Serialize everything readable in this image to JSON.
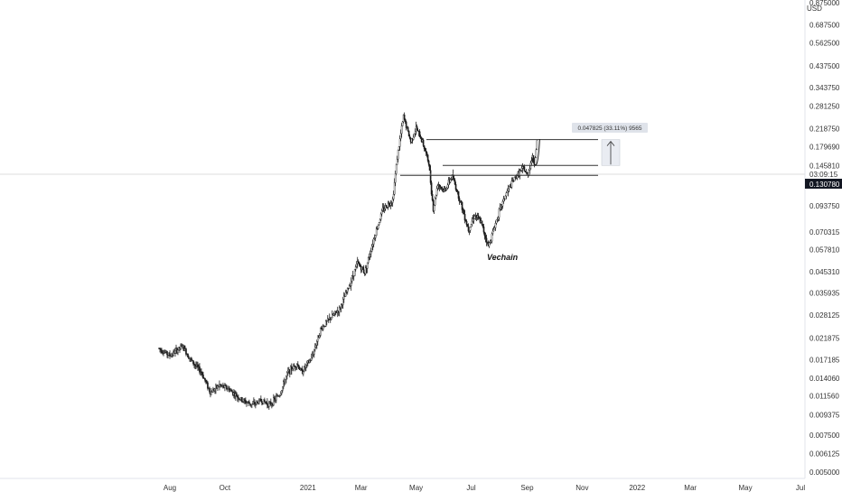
{
  "chart_data": {
    "type": "candlestick",
    "y_scale": "log",
    "y_unit": "USD",
    "y_ticks": [
      "0.875000",
      "0.687500",
      "0.562500",
      "0.437500",
      "0.343750",
      "0.281250",
      "0.218750",
      "0.179690",
      "0.145810",
      "0.130780",
      "0.093750",
      "0.070315",
      "0.057810",
      "0.045310",
      "0.035935",
      "0.028125",
      "0.021875",
      "0.017185",
      "0.014060",
      "0.011560",
      "0.009375",
      "0.007500",
      "0.006125",
      "0.005000"
    ],
    "x_ticks": [
      "Aug",
      "Oct",
      "2021",
      "Mar",
      "May",
      "Jul",
      "Sep",
      "Nov",
      "2022",
      "Mar",
      "May",
      "Jul"
    ],
    "current_price": "0.130780",
    "countdown": "03:09:15",
    "annotation": "Vechain",
    "measure_label": "0.047825 (33.11%) 9565",
    "levels": [
      0.194,
      0.146,
      0.131
    ],
    "price_path": [
      [
        "2020-07-20",
        0.0195
      ],
      [
        "2020-08-01",
        0.018
      ],
      [
        "2020-08-15",
        0.02
      ],
      [
        "2020-08-25",
        0.017
      ],
      [
        "2020-09-05",
        0.015
      ],
      [
        "2020-09-15",
        0.012
      ],
      [
        "2020-09-25",
        0.013
      ],
      [
        "2020-10-05",
        0.0125
      ],
      [
        "2020-10-20",
        0.011
      ],
      [
        "2020-11-01",
        0.0105
      ],
      [
        "2020-11-10",
        0.011
      ],
      [
        "2020-11-20",
        0.0105
      ],
      [
        "2020-12-01",
        0.0118
      ],
      [
        "2020-12-10",
        0.015
      ],
      [
        "2020-12-20",
        0.0165
      ],
      [
        "2020-12-25",
        0.015
      ],
      [
        "2021-01-05",
        0.0175
      ],
      [
        "2021-01-15",
        0.024
      ],
      [
        "2021-01-25",
        0.027
      ],
      [
        "2021-02-05",
        0.03
      ],
      [
        "2021-02-15",
        0.038
      ],
      [
        "2021-02-25",
        0.05
      ],
      [
        "2021-03-05",
        0.045
      ],
      [
        "2021-03-15",
        0.065
      ],
      [
        "2021-03-25",
        0.09
      ],
      [
        "2021-04-05",
        0.1
      ],
      [
        "2021-04-10",
        0.16
      ],
      [
        "2021-04-17",
        0.25
      ],
      [
        "2021-04-25",
        0.19
      ],
      [
        "2021-05-01",
        0.22
      ],
      [
        "2021-05-08",
        0.19
      ],
      [
        "2021-05-15",
        0.15
      ],
      [
        "2021-05-20",
        0.09
      ],
      [
        "2021-05-25",
        0.12
      ],
      [
        "2021-06-01",
        0.11
      ],
      [
        "2021-06-10",
        0.13
      ],
      [
        "2021-06-20",
        0.095
      ],
      [
        "2021-06-28",
        0.072
      ],
      [
        "2021-07-05",
        0.085
      ],
      [
        "2021-07-12",
        0.078
      ],
      [
        "2021-07-20",
        0.06
      ],
      [
        "2021-07-25",
        0.07
      ],
      [
        "2021-08-01",
        0.088
      ],
      [
        "2021-08-10",
        0.11
      ],
      [
        "2021-08-20",
        0.13
      ],
      [
        "2021-08-28",
        0.142
      ],
      [
        "2021-09-01",
        0.13
      ],
      [
        "2021-09-05",
        0.15
      ],
      [
        "2021-09-07",
        0.16
      ],
      [
        "2021-09-09",
        0.15
      ],
      [
        "2021-09-12",
        0.19
      ]
    ]
  }
}
